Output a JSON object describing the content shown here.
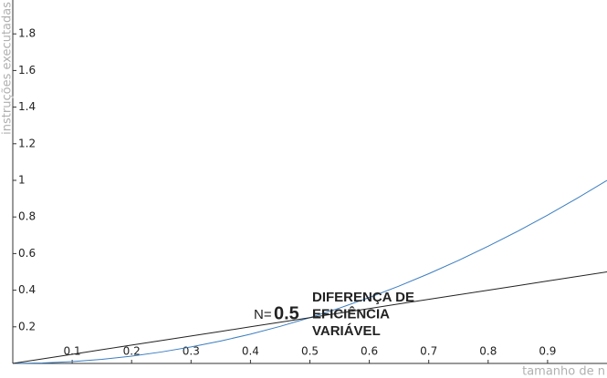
{
  "chart_data": {
    "type": "line",
    "x_label": "tamanho de n",
    "y_label": "instruções executadas",
    "x": [
      0,
      0.05,
      0.1,
      0.15,
      0.2,
      0.25,
      0.3,
      0.35,
      0.4,
      0.45,
      0.5,
      0.55,
      0.6,
      0.65,
      0.7,
      0.75,
      0.8,
      0.85,
      0.9,
      0.95,
      1
    ],
    "series": [
      {
        "color": "#3a7dbf",
        "values": [
          0,
          0.0025,
          0.01,
          0.0225,
          0.04,
          0.0625,
          0.09,
          0.1225,
          0.16,
          0.2025,
          0.25,
          0.3025,
          0.36,
          0.4225,
          0.49,
          0.5625,
          0.64,
          0.7225,
          0.81,
          0.9025,
          1
        ]
      },
      {
        "color": "#222222",
        "values": [
          0,
          0.025,
          0.05,
          0.075,
          0.1,
          0.125,
          0.15,
          0.175,
          0.2,
          0.225,
          0.25,
          0.275,
          0.3,
          0.325,
          0.35,
          0.375,
          0.4,
          0.425,
          0.45,
          0.475,
          0.5
        ]
      }
    ],
    "xlim": [
      0,
      1
    ],
    "ylim": [
      0,
      2
    ],
    "xticks": [
      0.1,
      0.2,
      0.3,
      0.4,
      0.5,
      0.6,
      0.7,
      0.8,
      0.9
    ],
    "yticks": [
      0.2,
      0.4,
      0.6,
      0.8,
      1,
      1.2,
      1.4,
      1.6,
      1.8
    ],
    "annotation_color": "#ff0000",
    "annotations": {
      "prefix": "N=",
      "value": "0.5",
      "lines": [
        "DIFERENÇA DE",
        "EFICIÊNCIA",
        "VARIÁVEL"
      ]
    }
  }
}
